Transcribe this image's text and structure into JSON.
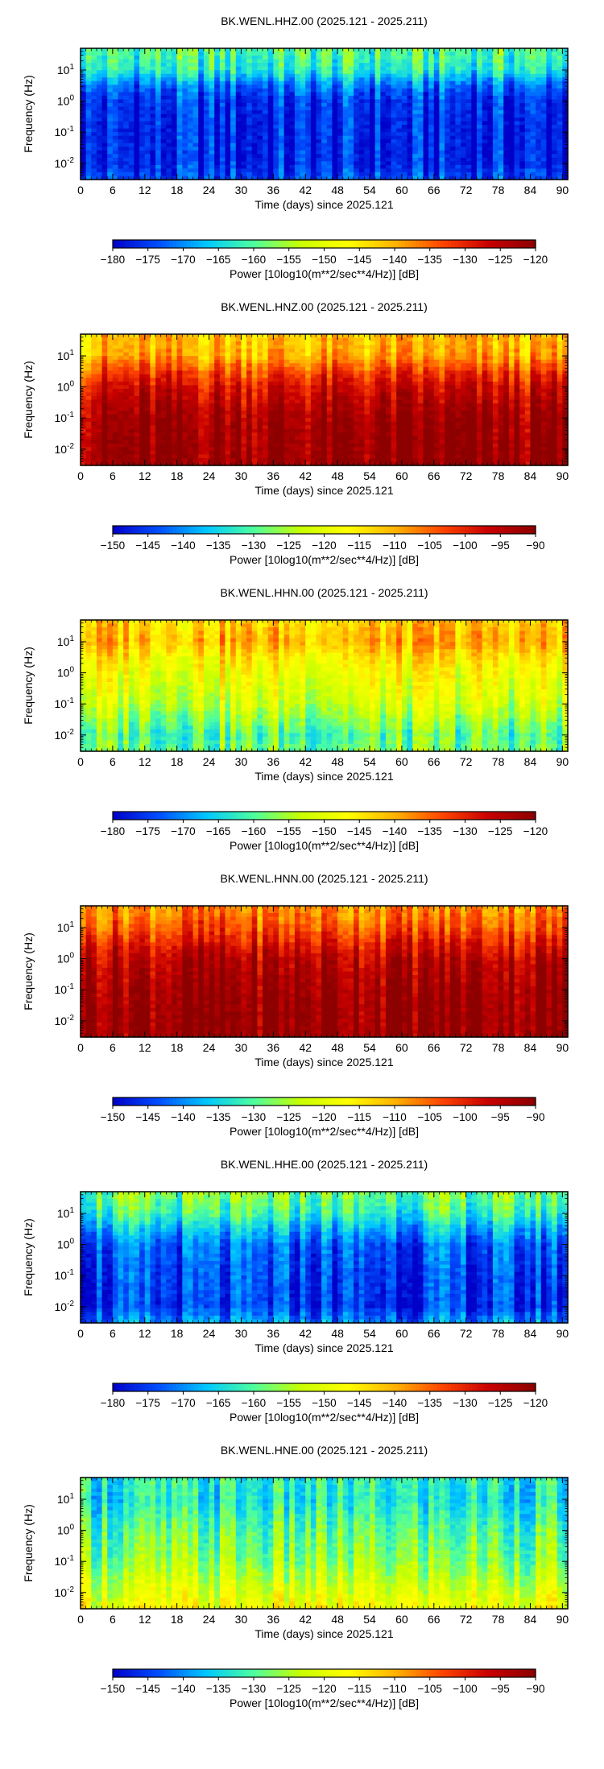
{
  "chart_data": [
    {
      "type": "heatmap",
      "title": "BK.WENL.HHZ.00 (2025.121 - 2025.211)",
      "xlabel": "Time (days) since 2025.121",
      "ylabel": "Frequency (Hz)",
      "xlim": [
        0,
        91
      ],
      "ylim": [
        0.003,
        50
      ],
      "y_scale": "log",
      "x_ticks": [
        "0",
        "6",
        "12",
        "18",
        "24",
        "30",
        "36",
        "42",
        "48",
        "54",
        "60",
        "66",
        "72",
        "78",
        "84",
        "90"
      ],
      "y_ticks": [
        "10^1",
        "10^0",
        "10^-1",
        "10^-2"
      ],
      "colorbar": {
        "min": -180,
        "max": -120,
        "ticks": [
          "−180",
          "−175",
          "−170",
          "−165",
          "−160",
          "−155",
          "−150",
          "−145",
          "−140",
          "−135",
          "−130",
          "−125",
          "−120"
        ],
        "label": "Power [10log10(m**2/sec**4/Hz)] [dB]"
      },
      "colormap": [
        "#0000c8",
        "#0050ff",
        "#00c8ff",
        "#4dff9e",
        "#c8ff00",
        "#ffff00",
        "#ffb400",
        "#ff4600",
        "#c80000",
        "#8c0000"
      ],
      "power_profile_db": [
        {
          "freq_hz": 50,
          "power_db": -160
        },
        {
          "freq_hz": 10,
          "power_db": -163
        },
        {
          "freq_hz": 3,
          "power_db": -172
        },
        {
          "freq_hz": 1,
          "power_db": -176
        },
        {
          "freq_hz": 0.1,
          "power_db": -177
        },
        {
          "freq_hz": 0.01,
          "power_db": -177
        },
        {
          "freq_hz": 0.003,
          "power_db": -174
        }
      ]
    },
    {
      "type": "heatmap",
      "title": "BK.WENL.HNZ.00 (2025.121 - 2025.211)",
      "xlabel": "Time (days) since 2025.121",
      "ylabel": "Frequency (Hz)",
      "xlim": [
        0,
        91
      ],
      "ylim": [
        0.003,
        50
      ],
      "y_scale": "log",
      "x_ticks": [
        "0",
        "6",
        "12",
        "18",
        "24",
        "30",
        "36",
        "42",
        "48",
        "54",
        "60",
        "66",
        "72",
        "78",
        "84",
        "90"
      ],
      "y_ticks": [
        "10^1",
        "10^0",
        "10^-1",
        "10^-2"
      ],
      "colorbar": {
        "min": -150,
        "max": -90,
        "ticks": [
          "−150",
          "−145",
          "−140",
          "−135",
          "−130",
          "−125",
          "−120",
          "−115",
          "−110",
          "−105",
          "−100",
          "−95",
          "−90"
        ],
        "label": "Power [10log10(m**2/sec**4/Hz)] [dB]"
      },
      "colormap": [
        "#0000c8",
        "#0050ff",
        "#00c8ff",
        "#4dff9e",
        "#c8ff00",
        "#ffff00",
        "#ffb400",
        "#ff4600",
        "#c80000",
        "#8c0000"
      ],
      "power_profile_db": [
        {
          "freq_hz": 50,
          "power_db": -112
        },
        {
          "freq_hz": 10,
          "power_db": -110
        },
        {
          "freq_hz": 3,
          "power_db": -103
        },
        {
          "freq_hz": 1,
          "power_db": -98
        },
        {
          "freq_hz": 0.1,
          "power_db": -93
        },
        {
          "freq_hz": 0.01,
          "power_db": -92
        },
        {
          "freq_hz": 0.003,
          "power_db": -92
        }
      ]
    },
    {
      "type": "heatmap",
      "title": "BK.WENL.HHN.00 (2025.121 - 2025.211)",
      "xlabel": "Time (days) since 2025.121",
      "ylabel": "Frequency (Hz)",
      "xlim": [
        0,
        91
      ],
      "ylim": [
        0.003,
        50
      ],
      "y_scale": "log",
      "x_ticks": [
        "0",
        "6",
        "12",
        "18",
        "24",
        "30",
        "36",
        "42",
        "48",
        "54",
        "60",
        "66",
        "72",
        "78",
        "84",
        "90"
      ],
      "y_ticks": [
        "10^1",
        "10^0",
        "10^-1",
        "10^-2"
      ],
      "colorbar": {
        "min": -180,
        "max": -120,
        "ticks": [
          "−180",
          "−175",
          "−170",
          "−165",
          "−160",
          "−155",
          "−150",
          "−145",
          "−140",
          "−135",
          "−130",
          "−125",
          "−120"
        ],
        "label": "Power [10log10(m**2/sec**4/Hz)] [dB]"
      },
      "colormap": [
        "#0000c8",
        "#0050ff",
        "#00c8ff",
        "#4dff9e",
        "#c8ff00",
        "#ffff00",
        "#ffb400",
        "#ff4600",
        "#c80000",
        "#8c0000"
      ],
      "power_profile_db": [
        {
          "freq_hz": 50,
          "power_db": -143
        },
        {
          "freq_hz": 10,
          "power_db": -140
        },
        {
          "freq_hz": 3,
          "power_db": -145
        },
        {
          "freq_hz": 1,
          "power_db": -148
        },
        {
          "freq_hz": 0.1,
          "power_db": -152
        },
        {
          "freq_hz": 0.01,
          "power_db": -160
        },
        {
          "freq_hz": 0.003,
          "power_db": -158
        }
      ]
    },
    {
      "type": "heatmap",
      "title": "BK.WENL.HNN.00 (2025.121 - 2025.211)",
      "xlabel": "Time (days) since 2025.121",
      "ylabel": "Frequency (Hz)",
      "xlim": [
        0,
        91
      ],
      "ylim": [
        0.003,
        50
      ],
      "y_scale": "log",
      "x_ticks": [
        "0",
        "6",
        "12",
        "18",
        "24",
        "30",
        "36",
        "42",
        "48",
        "54",
        "60",
        "66",
        "72",
        "78",
        "84",
        "90"
      ],
      "y_ticks": [
        "10^1",
        "10^0",
        "10^-1",
        "10^-2"
      ],
      "colorbar": {
        "min": -150,
        "max": -90,
        "ticks": [
          "−150",
          "−145",
          "−140",
          "−135",
          "−130",
          "−125",
          "−120",
          "−115",
          "−110",
          "−105",
          "−100",
          "−95",
          "−90"
        ],
        "label": "Power [10log10(m**2/sec**4/Hz)] [dB]"
      },
      "colormap": [
        "#0000c8",
        "#0050ff",
        "#00c8ff",
        "#4dff9e",
        "#c8ff00",
        "#ffff00",
        "#ffb400",
        "#ff4600",
        "#c80000",
        "#8c0000"
      ],
      "power_profile_db": [
        {
          "freq_hz": 50,
          "power_db": -108
        },
        {
          "freq_hz": 10,
          "power_db": -104
        },
        {
          "freq_hz": 3,
          "power_db": -99
        },
        {
          "freq_hz": 1,
          "power_db": -95
        },
        {
          "freq_hz": 0.1,
          "power_db": -92
        },
        {
          "freq_hz": 0.01,
          "power_db": -91
        },
        {
          "freq_hz": 0.003,
          "power_db": -91
        }
      ]
    },
    {
      "type": "heatmap",
      "title": "BK.WENL.HHE.00 (2025.121 - 2025.211)",
      "xlabel": "Time (days) since 2025.121",
      "ylabel": "Frequency (Hz)",
      "xlim": [
        0,
        91
      ],
      "ylim": [
        0.003,
        50
      ],
      "y_scale": "log",
      "x_ticks": [
        "0",
        "6",
        "12",
        "18",
        "24",
        "30",
        "36",
        "42",
        "48",
        "54",
        "60",
        "66",
        "72",
        "78",
        "84",
        "90"
      ],
      "y_ticks": [
        "10^1",
        "10^0",
        "10^-1",
        "10^-2"
      ],
      "colorbar": {
        "min": -180,
        "max": -120,
        "ticks": [
          "−180",
          "−175",
          "−170",
          "−165",
          "−160",
          "−155",
          "−150",
          "−145",
          "−140",
          "−135",
          "−130",
          "−125",
          "−120"
        ],
        "label": "Power [10log10(m**2/sec**4/Hz)] [dB]"
      },
      "colormap": [
        "#0000c8",
        "#0050ff",
        "#00c8ff",
        "#4dff9e",
        "#c8ff00",
        "#ffff00",
        "#ffb400",
        "#ff4600",
        "#c80000",
        "#8c0000"
      ],
      "power_profile_db": [
        {
          "freq_hz": 50,
          "power_db": -158
        },
        {
          "freq_hz": 10,
          "power_db": -162
        },
        {
          "freq_hz": 3,
          "power_db": -168
        },
        {
          "freq_hz": 1,
          "power_db": -173
        },
        {
          "freq_hz": 0.1,
          "power_db": -175
        },
        {
          "freq_hz": 0.01,
          "power_db": -176
        },
        {
          "freq_hz": 0.003,
          "power_db": -170
        }
      ]
    },
    {
      "type": "heatmap",
      "title": "BK.WENL.HNE.00 (2025.121 - 2025.211)",
      "xlabel": "Time (days) since 2025.121",
      "ylabel": "Frequency (Hz)",
      "xlim": [
        0,
        91
      ],
      "ylim": [
        0.003,
        50
      ],
      "y_scale": "log",
      "x_ticks": [
        "0",
        "6",
        "12",
        "18",
        "24",
        "30",
        "36",
        "42",
        "48",
        "54",
        "60",
        "66",
        "72",
        "78",
        "84",
        "90"
      ],
      "y_ticks": [
        "10^1",
        "10^0",
        "10^-1",
        "10^-2"
      ],
      "colorbar": {
        "min": -150,
        "max": -90,
        "ticks": [
          "−150",
          "−145",
          "−140",
          "−135",
          "−130",
          "−125",
          "−120",
          "−115",
          "−110",
          "−105",
          "−100",
          "−95",
          "−90"
        ],
        "label": "Power [10log10(m**2/sec**4/Hz)] [dB]"
      },
      "colormap": [
        "#0000c8",
        "#0050ff",
        "#00c8ff",
        "#4dff9e",
        "#c8ff00",
        "#ffff00",
        "#ffb400",
        "#ff4600",
        "#c80000",
        "#8c0000"
      ],
      "power_profile_db": [
        {
          "freq_hz": 50,
          "power_db": -133
        },
        {
          "freq_hz": 10,
          "power_db": -134
        },
        {
          "freq_hz": 3,
          "power_db": -132
        },
        {
          "freq_hz": 1,
          "power_db": -130
        },
        {
          "freq_hz": 0.1,
          "power_db": -127
        },
        {
          "freq_hz": 0.01,
          "power_db": -121
        },
        {
          "freq_hz": 0.003,
          "power_db": -118
        }
      ]
    }
  ]
}
